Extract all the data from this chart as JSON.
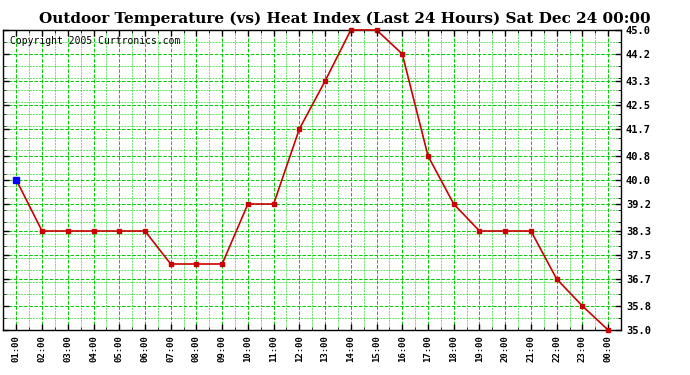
{
  "title": "Outdoor Temperature (vs) Heat Index (Last 24 Hours) Sat Dec 24 00:00",
  "copyright": "Copyright 2005 Curtronics.com",
  "x_labels": [
    "01:00",
    "02:00",
    "03:00",
    "04:00",
    "05:00",
    "06:00",
    "07:00",
    "08:00",
    "09:00",
    "10:00",
    "11:00",
    "12:00",
    "13:00",
    "14:00",
    "15:00",
    "16:00",
    "17:00",
    "18:00",
    "19:00",
    "20:00",
    "21:00",
    "22:00",
    "23:00",
    "00:00"
  ],
  "y_values": [
    40.0,
    38.3,
    38.3,
    38.3,
    38.3,
    38.3,
    37.2,
    37.2,
    37.2,
    39.2,
    39.2,
    41.7,
    43.3,
    45.0,
    45.0,
    44.2,
    40.8,
    39.2,
    38.3,
    38.3,
    38.3,
    36.7,
    35.8,
    35.0
  ],
  "ylim_min": 35.0,
  "ylim_max": 45.0,
  "y_ticks": [
    35.0,
    35.8,
    36.7,
    37.5,
    38.3,
    39.2,
    40.0,
    40.8,
    41.7,
    42.5,
    43.3,
    44.2,
    45.0
  ],
  "line_color": "#cc0000",
  "marker_color": "#cc0000",
  "bg_color": "#ffffff",
  "plot_bg_color": "#ffffff",
  "grid_color": "#00cc00",
  "title_fontsize": 11,
  "copyright_fontsize": 7
}
